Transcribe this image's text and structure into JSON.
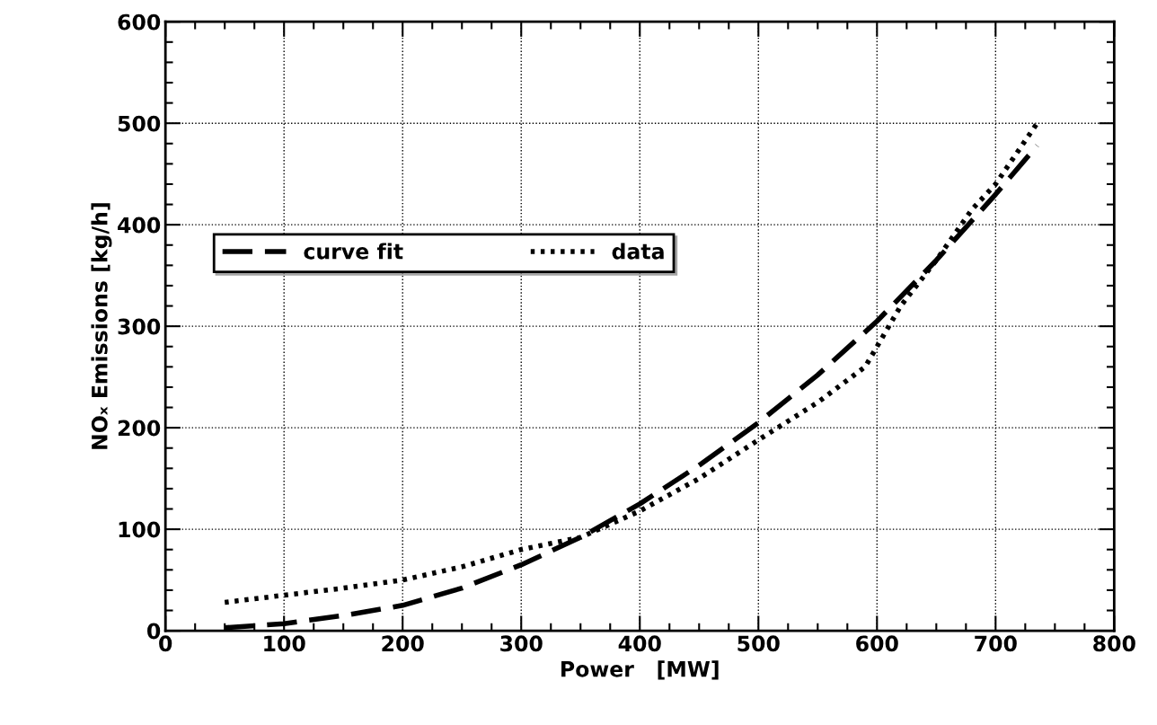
{
  "chart_data": {
    "type": "line",
    "xlabel": "Power   [MW]",
    "ylabel": "NOₓ Emissions [kg/h]",
    "xlim": [
      0,
      800
    ],
    "xticks": [
      0,
      100,
      200,
      300,
      400,
      500,
      600,
      700,
      800
    ],
    "ylim": [
      0,
      600
    ],
    "yticks": [
      0,
      100,
      200,
      300,
      400,
      500,
      600
    ],
    "grid": true,
    "legend": "left",
    "series": [
      {
        "name": "curve fit",
        "color": "#000000",
        "line_style": "dashed",
        "x": [
          50,
          100,
          150,
          200,
          250,
          300,
          350,
          400,
          450,
          500,
          550,
          600,
          650,
          700,
          735
        ],
        "values": [
          3,
          7,
          15,
          25,
          42,
          65,
          92,
          125,
          163,
          205,
          252,
          305,
          365,
          430,
          478
        ]
      },
      {
        "name": "data",
        "color": "#000000",
        "line_style": "dotted",
        "x": [
          50,
          100,
          150,
          200,
          250,
          300,
          350,
          400,
          450,
          500,
          550,
          590,
          600,
          620,
          650,
          680,
          700,
          735
        ],
        "values": [
          28,
          35,
          42,
          50,
          63,
          80,
          92,
          118,
          150,
          188,
          225,
          260,
          280,
          320,
          365,
          415,
          440,
          500
        ]
      }
    ]
  }
}
